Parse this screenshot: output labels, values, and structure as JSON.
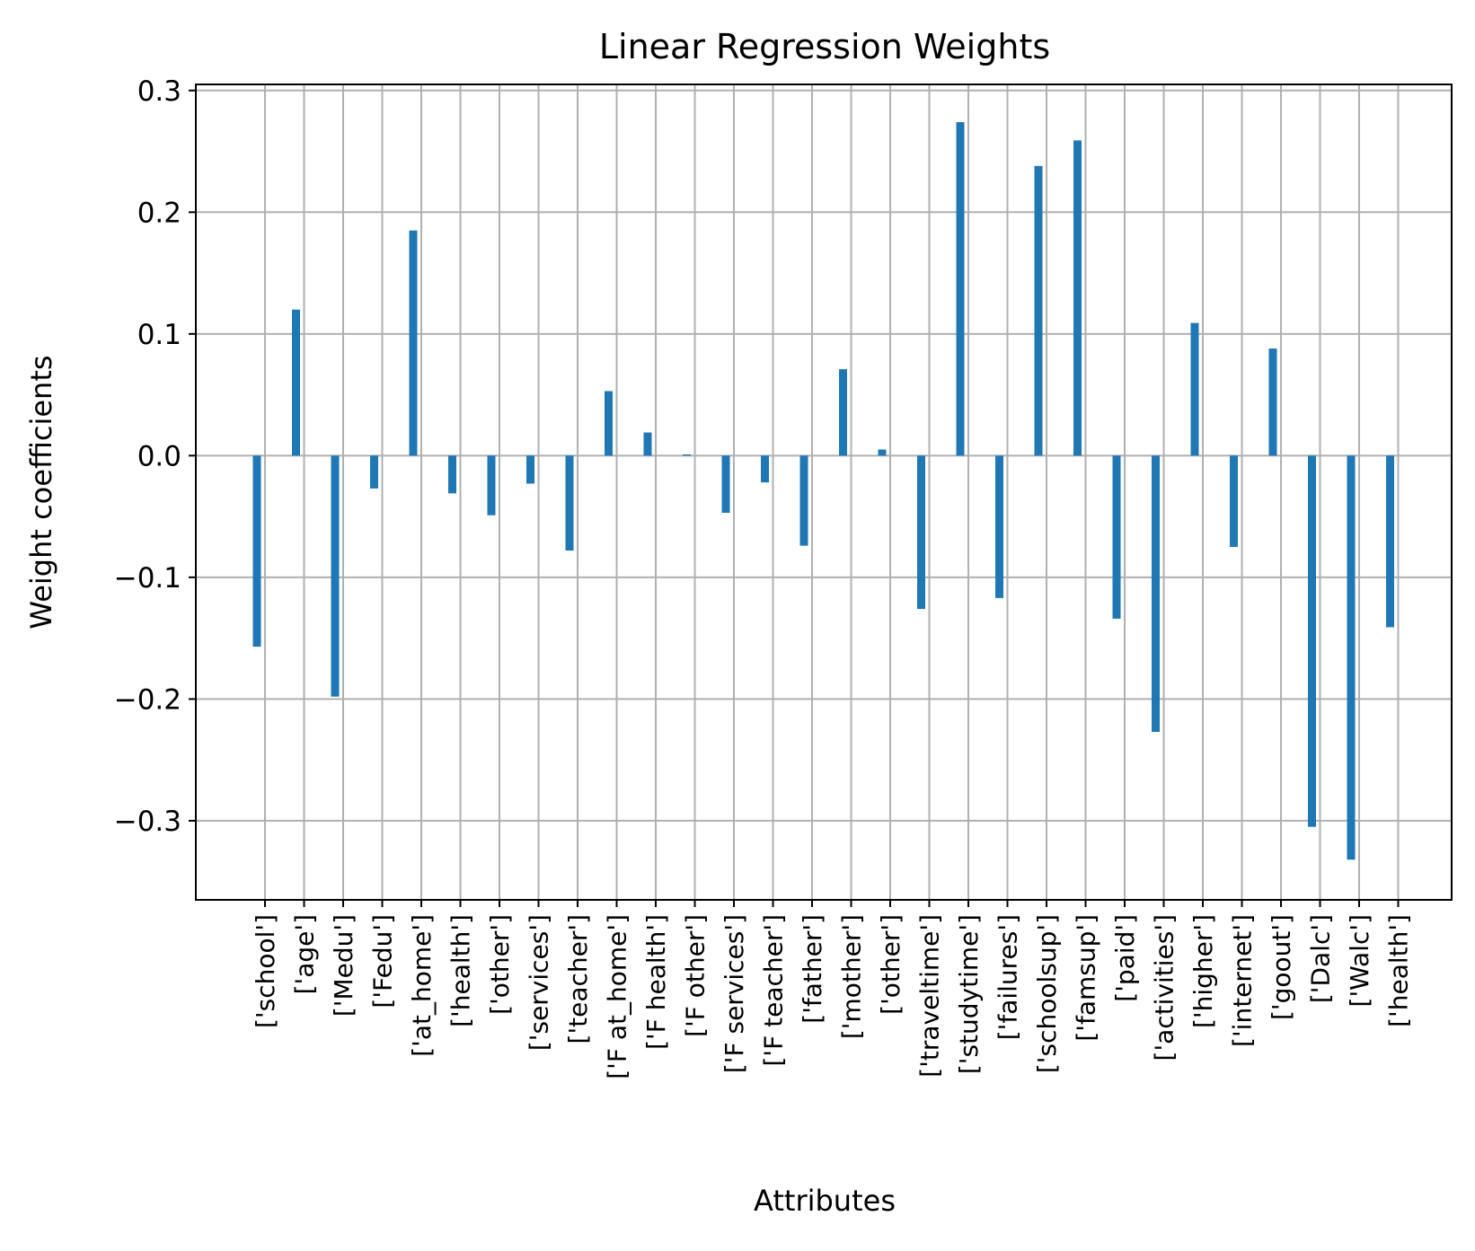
{
  "chart_data": {
    "type": "bar",
    "title": "Linear Regression Weights",
    "xlabel": "Attributes",
    "ylabel": "Weight coefficients",
    "ylim": [
      -0.365,
      0.305
    ],
    "yticks": [
      {
        "value": 0.3,
        "label": "0.3"
      },
      {
        "value": 0.2,
        "label": "0.2"
      },
      {
        "value": 0.1,
        "label": "0.1"
      },
      {
        "value": 0.0,
        "label": "0.0"
      },
      {
        "value": -0.1,
        "label": "−0.1"
      },
      {
        "value": -0.2,
        "label": "−0.2"
      },
      {
        "value": -0.3,
        "label": "−0.3"
      }
    ],
    "grid": true,
    "bar_color": "#1f77b4",
    "categories": [
      "['school']",
      "['age']",
      "['Medu']",
      "['Fedu']",
      "['at_home']",
      "['health']",
      "['other']",
      "['services']",
      "['teacher']",
      "['F at_home']",
      "['F health']",
      "['F other']",
      "['F services']",
      "['F teacher']",
      "['father']",
      "['mother']",
      "['other']",
      "['traveltime']",
      "['studytime']",
      "['failures']",
      "['schoolsup']",
      "['famsup']",
      "['paid']",
      "['activities']",
      "['higher']",
      "['internet']",
      "['goout']",
      "['Dalc']",
      "['Walc']",
      "['health']"
    ],
    "values": [
      -0.157,
      0.12,
      -0.198,
      -0.027,
      0.185,
      -0.031,
      -0.049,
      -0.023,
      -0.078,
      0.053,
      0.019,
      0.001,
      -0.047,
      -0.022,
      -0.074,
      0.071,
      0.005,
      -0.126,
      0.274,
      -0.117,
      0.238,
      0.259,
      -0.134,
      -0.227,
      0.109,
      -0.075,
      0.088,
      -0.305,
      -0.332,
      -0.141
    ]
  }
}
